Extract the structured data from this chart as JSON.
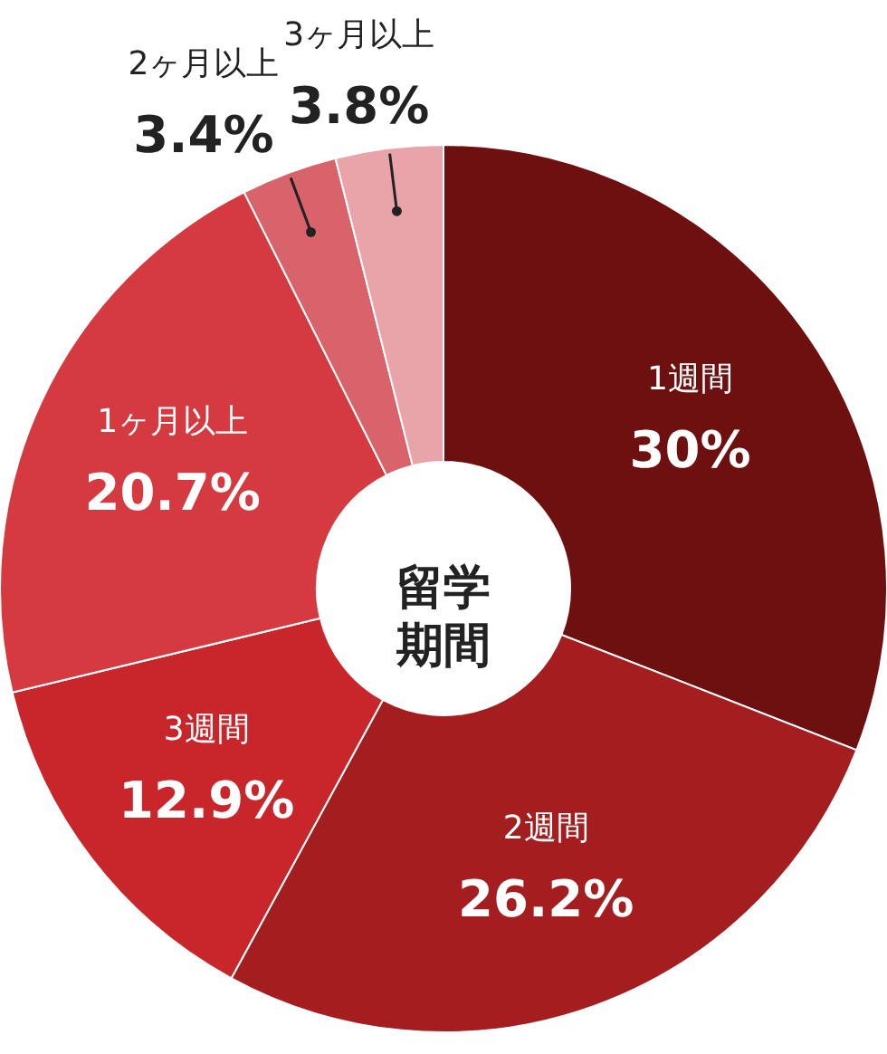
{
  "chart_data": {
    "type": "donut",
    "title": "留学期間",
    "categories": [
      "1週間",
      "2週間",
      "3週間",
      "1ヶ月以上",
      "2ヶ月以上",
      "3ヶ月以上"
    ],
    "values": [
      30,
      26.2,
      12.9,
      20.7,
      3.4,
      3.8
    ],
    "value_labels": [
      "30%",
      "26.2%",
      "12.9%",
      "20.7%",
      "3.4%",
      "3.8%"
    ],
    "colors": [
      "#6e0f10",
      "#a51e1f",
      "#c8262a",
      "#d43a40",
      "#d9636a",
      "#e8a4a8"
    ]
  }
}
